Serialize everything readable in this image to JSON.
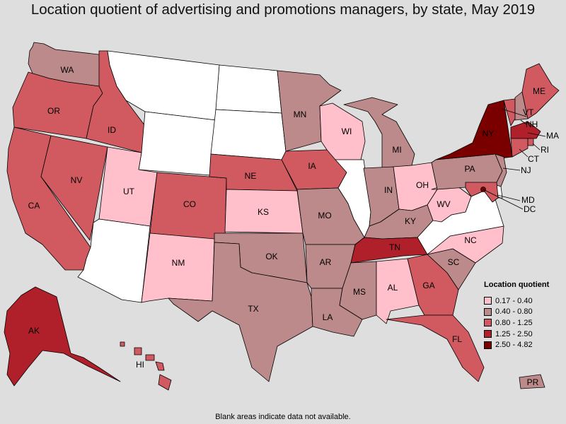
{
  "title": "Location quotient of advertising and promotions managers, by state, May 2019",
  "footnote": "Blank areas indicate data not available.",
  "legend": {
    "title": "Location quotient",
    "ranges": [
      {
        "label": "0.17 - 0.40",
        "color": "#ffc0cb"
      },
      {
        "label": "0.40 - 0.80",
        "color": "#bc8a8a"
      },
      {
        "label": "0.80 - 1.25",
        "color": "#d05a60"
      },
      {
        "label": "1.25 - 2.50",
        "color": "#b0202a"
      },
      {
        "label": "2.50 - 4.82",
        "color": "#7a0000"
      }
    ],
    "no_data_color": "#ffffff"
  },
  "states": [
    {
      "abbr": "WA",
      "category": "0.40 - 0.80"
    },
    {
      "abbr": "OR",
      "category": "0.80 - 1.25"
    },
    {
      "abbr": "CA",
      "category": "0.80 - 1.25"
    },
    {
      "abbr": "NV",
      "category": "0.80 - 1.25"
    },
    {
      "abbr": "ID",
      "category": "0.80 - 1.25"
    },
    {
      "abbr": "MT",
      "category": "none"
    },
    {
      "abbr": "WY",
      "category": "none"
    },
    {
      "abbr": "UT",
      "category": "0.17 - 0.40"
    },
    {
      "abbr": "AZ",
      "category": "none"
    },
    {
      "abbr": "CO",
      "category": "0.80 - 1.25"
    },
    {
      "abbr": "NM",
      "category": "0.17 - 0.40"
    },
    {
      "abbr": "ND",
      "category": "none"
    },
    {
      "abbr": "SD",
      "category": "none"
    },
    {
      "abbr": "NE",
      "category": "0.80 - 1.25"
    },
    {
      "abbr": "KS",
      "category": "0.17 - 0.40"
    },
    {
      "abbr": "OK",
      "category": "0.40 - 0.80"
    },
    {
      "abbr": "TX",
      "category": "0.40 - 0.80"
    },
    {
      "abbr": "MN",
      "category": "0.40 - 0.80"
    },
    {
      "abbr": "IA",
      "category": "0.80 - 1.25"
    },
    {
      "abbr": "MO",
      "category": "0.40 - 0.80"
    },
    {
      "abbr": "AR",
      "category": "0.40 - 0.80"
    },
    {
      "abbr": "LA",
      "category": "0.40 - 0.80"
    },
    {
      "abbr": "WI",
      "category": "0.17 - 0.40"
    },
    {
      "abbr": "IL",
      "category": "none"
    },
    {
      "abbr": "MI",
      "category": "0.40 - 0.80"
    },
    {
      "abbr": "IN",
      "category": "0.40 - 0.80"
    },
    {
      "abbr": "OH",
      "category": "0.17 - 0.40"
    },
    {
      "abbr": "KY",
      "category": "0.40 - 0.80"
    },
    {
      "abbr": "TN",
      "category": "1.25 - 2.50"
    },
    {
      "abbr": "MS",
      "category": "0.40 - 0.80"
    },
    {
      "abbr": "AL",
      "category": "0.17 - 0.40"
    },
    {
      "abbr": "GA",
      "category": "0.80 - 1.25"
    },
    {
      "abbr": "FL",
      "category": "0.80 - 1.25"
    },
    {
      "abbr": "SC",
      "category": "0.40 - 0.80"
    },
    {
      "abbr": "NC",
      "category": "0.17 - 0.40"
    },
    {
      "abbr": "VA",
      "category": "none"
    },
    {
      "abbr": "WV",
      "category": "0.17 - 0.40"
    },
    {
      "abbr": "PA",
      "category": "0.40 - 0.80"
    },
    {
      "abbr": "NY",
      "category": "2.50 - 4.82"
    },
    {
      "abbr": "VT",
      "category": "0.80 - 1.25"
    },
    {
      "abbr": "NH",
      "category": "0.40 - 0.80"
    },
    {
      "abbr": "ME",
      "category": "0.80 - 1.25"
    },
    {
      "abbr": "MA",
      "category": "1.25 - 2.50"
    },
    {
      "abbr": "RI",
      "category": "0.80 - 1.25"
    },
    {
      "abbr": "CT",
      "category": "0.80 - 1.25"
    },
    {
      "abbr": "NJ",
      "category": "0.40 - 0.80"
    },
    {
      "abbr": "DE",
      "category": "none"
    },
    {
      "abbr": "MD",
      "category": "0.80 - 1.25"
    },
    {
      "abbr": "DC",
      "category": "2.50 - 4.82"
    },
    {
      "abbr": "AK",
      "category": "1.25 - 2.50"
    },
    {
      "abbr": "HI",
      "category": "0.80 - 1.25"
    },
    {
      "abbr": "PR",
      "category": "0.40 - 0.80"
    }
  ]
}
